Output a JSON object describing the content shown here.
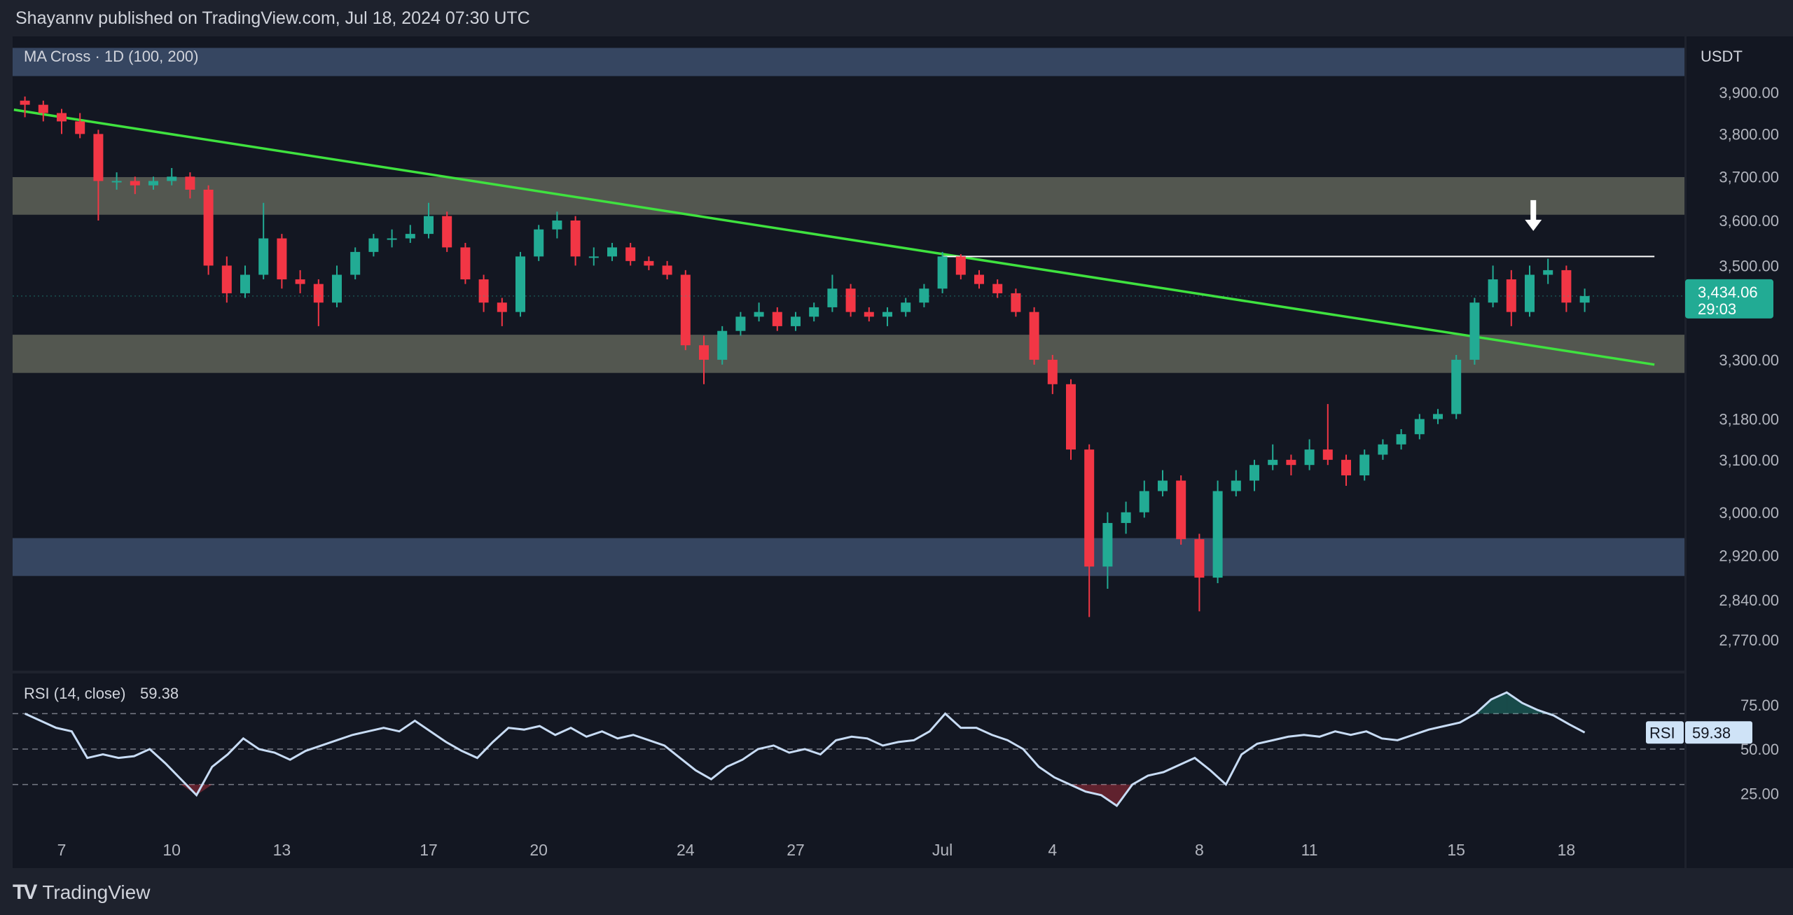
{
  "header": {
    "publisher_line": "Shayannv published on TradingView.com, Jul 18, 2024 07:30 UTC"
  },
  "footer": {
    "brand": "TradingView",
    "logo_text": "TV"
  },
  "chart_data": [
    {
      "type": "candlestick",
      "title": "MA Cross · 1D (100, 200)",
      "currency": "USDT",
      "y_scale": "log",
      "ylim": [
        2730,
        4010
      ],
      "grid": false,
      "start_date": "2024-06-06",
      "candle_interval_days": 0.5,
      "y_ticks": [
        "3,900.00",
        "3,800.00",
        "3,700.00",
        "3,600.00",
        "3,500.00",
        "3,300.00",
        "3,180.00",
        "3,100.00",
        "3,000.00",
        "2,920.00",
        "2,840.00",
        "2,770.00"
      ],
      "y_tick_values": [
        3900,
        3800,
        3700,
        3600,
        3500,
        3300,
        3180,
        3100,
        3000,
        2920,
        2840,
        2770
      ],
      "x_ticks": [
        {
          "label": "7",
          "date": "2024-06-07"
        },
        {
          "label": "10",
          "date": "2024-06-10"
        },
        {
          "label": "13",
          "date": "2024-06-13"
        },
        {
          "label": "17",
          "date": "2024-06-17"
        },
        {
          "label": "20",
          "date": "2024-06-20"
        },
        {
          "label": "24",
          "date": "2024-06-24"
        },
        {
          "label": "27",
          "date": "2024-06-27"
        },
        {
          "label": "Jul",
          "date": "2024-07-01"
        },
        {
          "label": "4",
          "date": "2024-07-04"
        },
        {
          "label": "8",
          "date": "2024-07-08"
        },
        {
          "label": "11",
          "date": "2024-07-11"
        },
        {
          "label": "15",
          "date": "2024-07-15"
        },
        {
          "label": "18",
          "date": "2024-07-18"
        }
      ],
      "last_price": {
        "label": "3,434.06",
        "value": 3434.06,
        "countdown": "29:03",
        "color": "#22ab94"
      },
      "colors": {
        "up": "#22ab94",
        "down": "#f23645",
        "trendline": "#3fe23f",
        "zone_gray": "#5b5e55",
        "zone_blue": "#3b4b68",
        "background": "#131722"
      },
      "zones": [
        {
          "low": 3940,
          "high": 4010,
          "color": "#3b4b68"
        },
        {
          "low": 3613,
          "high": 3699,
          "color": "#5b5e55"
        },
        {
          "low": 3273,
          "high": 3352,
          "color": "#5b5e55"
        },
        {
          "low": 2883,
          "high": 2952,
          "color": "#3b4b68"
        }
      ],
      "trendline": {
        "from": {
          "date": "2024-06-05.7",
          "price": 3858
        },
        "to": {
          "date": "2024-07-20.4",
          "price": 3290
        }
      },
      "resistance_line": {
        "price": 3520,
        "from": "2024-07-01",
        "to": "2024-07-20.4"
      },
      "arrow": {
        "date": "2024-07-17.1",
        "price": 3575,
        "direction": "down"
      },
      "candles": [
        [
          3880,
          3890,
          3840,
          3870
        ],
        [
          3870,
          3880,
          3830,
          3850
        ],
        [
          3850,
          3860,
          3800,
          3830
        ],
        [
          3830,
          3850,
          3790,
          3800
        ],
        [
          3800,
          3810,
          3600,
          3690
        ],
        [
          3690,
          3710,
          3670,
          3690
        ],
        [
          3690,
          3700,
          3660,
          3680
        ],
        [
          3680,
          3700,
          3670,
          3690
        ],
        [
          3690,
          3720,
          3680,
          3700
        ],
        [
          3700,
          3710,
          3650,
          3670
        ],
        [
          3670,
          3680,
          3480,
          3500
        ],
        [
          3500,
          3520,
          3420,
          3440
        ],
        [
          3440,
          3500,
          3430,
          3480
        ],
        [
          3480,
          3640,
          3470,
          3560
        ],
        [
          3560,
          3570,
          3450,
          3470
        ],
        [
          3470,
          3490,
          3440,
          3460
        ],
        [
          3460,
          3470,
          3370,
          3420
        ],
        [
          3420,
          3500,
          3410,
          3480
        ],
        [
          3480,
          3540,
          3470,
          3530
        ],
        [
          3530,
          3570,
          3520,
          3560
        ],
        [
          3560,
          3580,
          3540,
          3560
        ],
        [
          3560,
          3590,
          3550,
          3570
        ],
        [
          3570,
          3640,
          3560,
          3610
        ],
        [
          3610,
          3620,
          3530,
          3540
        ],
        [
          3540,
          3550,
          3460,
          3470
        ],
        [
          3470,
          3480,
          3400,
          3420
        ],
        [
          3420,
          3430,
          3370,
          3400
        ],
        [
          3400,
          3530,
          3390,
          3520
        ],
        [
          3520,
          3590,
          3510,
          3580
        ],
        [
          3580,
          3620,
          3560,
          3600
        ],
        [
          3600,
          3610,
          3500,
          3520
        ],
        [
          3520,
          3540,
          3500,
          3520
        ],
        [
          3520,
          3550,
          3510,
          3540
        ],
        [
          3540,
          3550,
          3500,
          3510
        ],
        [
          3510,
          3520,
          3490,
          3500
        ],
        [
          3500,
          3510,
          3470,
          3480
        ],
        [
          3480,
          3490,
          3320,
          3330
        ],
        [
          3330,
          3350,
          3250,
          3300
        ],
        [
          3300,
          3370,
          3290,
          3360
        ],
        [
          3360,
          3400,
          3350,
          3390
        ],
        [
          3390,
          3420,
          3380,
          3400
        ],
        [
          3400,
          3410,
          3360,
          3370
        ],
        [
          3370,
          3400,
          3360,
          3390
        ],
        [
          3390,
          3420,
          3380,
          3410
        ],
        [
          3410,
          3480,
          3400,
          3450
        ],
        [
          3450,
          3460,
          3390,
          3400
        ],
        [
          3400,
          3410,
          3380,
          3390
        ],
        [
          3390,
          3410,
          3370,
          3400
        ],
        [
          3400,
          3430,
          3390,
          3420
        ],
        [
          3420,
          3460,
          3410,
          3450
        ],
        [
          3450,
          3530,
          3440,
          3520
        ],
        [
          3520,
          3525,
          3470,
          3480
        ],
        [
          3480,
          3490,
          3450,
          3460
        ],
        [
          3460,
          3470,
          3430,
          3440
        ],
        [
          3440,
          3450,
          3390,
          3400
        ],
        [
          3400,
          3410,
          3290,
          3300
        ],
        [
          3300,
          3310,
          3230,
          3250
        ],
        [
          3250,
          3260,
          3100,
          3120
        ],
        [
          3120,
          3130,
          2810,
          2900
        ],
        [
          2900,
          3000,
          2860,
          2980
        ],
        [
          2980,
          3020,
          2960,
          3000
        ],
        [
          3000,
          3060,
          2990,
          3040
        ],
        [
          3040,
          3080,
          3030,
          3060
        ],
        [
          3060,
          3070,
          2940,
          2950
        ],
        [
          2950,
          2960,
          2820,
          2880
        ],
        [
          2880,
          3060,
          2870,
          3040
        ],
        [
          3040,
          3080,
          3030,
          3060
        ],
        [
          3060,
          3100,
          3040,
          3090
        ],
        [
          3090,
          3130,
          3080,
          3100
        ],
        [
          3100,
          3110,
          3070,
          3090
        ],
        [
          3090,
          3140,
          3080,
          3120
        ],
        [
          3120,
          3210,
          3090,
          3100
        ],
        [
          3100,
          3110,
          3050,
          3070
        ],
        [
          3070,
          3120,
          3060,
          3110
        ],
        [
          3110,
          3140,
          3100,
          3130
        ],
        [
          3130,
          3160,
          3120,
          3150
        ],
        [
          3150,
          3190,
          3140,
          3180
        ],
        [
          3180,
          3200,
          3170,
          3190
        ],
        [
          3190,
          3310,
          3180,
          3300
        ],
        [
          3300,
          3430,
          3290,
          3420
        ],
        [
          3420,
          3500,
          3410,
          3470
        ],
        [
          3470,
          3490,
          3370,
          3400
        ],
        [
          3400,
          3500,
          3390,
          3480
        ],
        [
          3480,
          3515,
          3460,
          3490
        ],
        [
          3490,
          3500,
          3400,
          3420
        ],
        [
          3420,
          3450,
          3400,
          3434.06
        ]
      ]
    },
    {
      "type": "line",
      "title": "RSI (14, close)",
      "current_value": "59.38",
      "axis_tag": {
        "name": "RSI",
        "value": "59.38"
      },
      "ylim": [
        12,
        88
      ],
      "y_ticks": [
        "75.00",
        "50.00",
        "25.00"
      ],
      "y_tick_values": [
        75,
        50,
        25
      ],
      "bands": [
        70,
        50,
        30
      ],
      "line_color": "#c8dcf5",
      "values": [
        70,
        66,
        62,
        60,
        45,
        47,
        45,
        46,
        50,
        42,
        33,
        24,
        40,
        47,
        56,
        50,
        48,
        44,
        49,
        52,
        55,
        58,
        60,
        62,
        60,
        66,
        60,
        54,
        49,
        45,
        54,
        62,
        61,
        63,
        58,
        62,
        57,
        60,
        56,
        58,
        55,
        52,
        45,
        38,
        33,
        40,
        44,
        50,
        52,
        48,
        50,
        47,
        55,
        57,
        56,
        52,
        54,
        55,
        60,
        70,
        62,
        62,
        58,
        55,
        50,
        40,
        34,
        30,
        26,
        24,
        18,
        30,
        35,
        37,
        41,
        45,
        38,
        30,
        47,
        53,
        55,
        57,
        58,
        57,
        60,
        58,
        60,
        56,
        55,
        58,
        61,
        63,
        65,
        70,
        78,
        82,
        76,
        72,
        69,
        64,
        59.38
      ]
    }
  ]
}
